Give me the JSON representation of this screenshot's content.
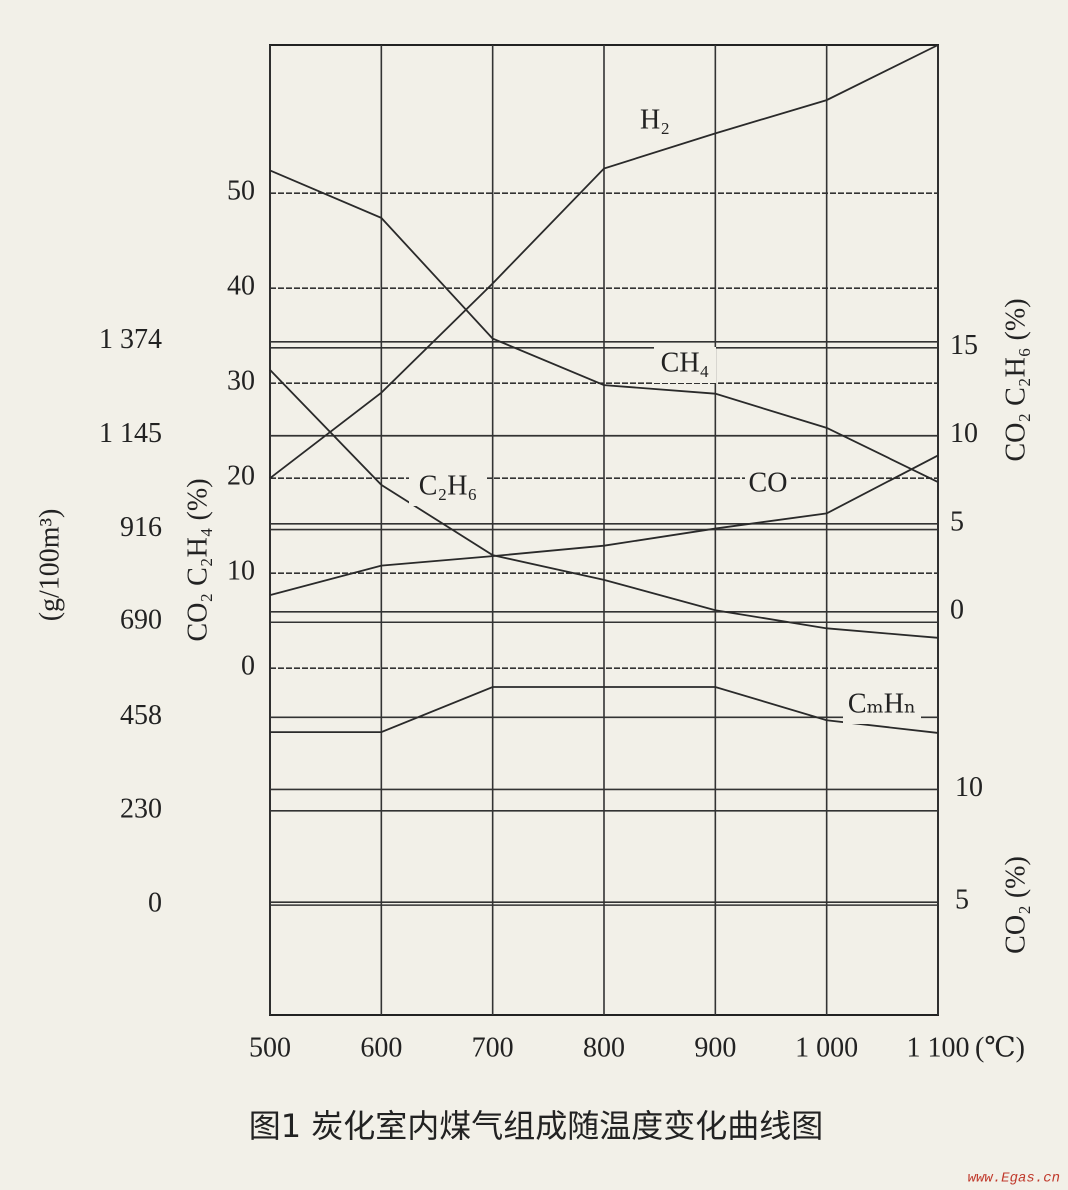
{
  "chart_data": {
    "type": "line",
    "title": "图1 炭化室内煤气组成随温度变化曲线图",
    "watermark": "www.Egas.cn",
    "x": [
      500,
      600,
      700,
      800,
      900,
      1000,
      1100
    ],
    "xlim": [
      500,
      1100
    ],
    "xticks": [
      500,
      600,
      700,
      800,
      900,
      {
        "value": 1000,
        "label": "1 000"
      },
      {
        "value": 1100,
        "label": "1 100"
      }
    ],
    "x_unit": "(℃)",
    "y_label": "CO₂ C₂H₄ (%)",
    "ylim": [
      -36.5,
      65.6
    ],
    "yticks": [
      0,
      10,
      20,
      30,
      40,
      50
    ],
    "y2_label": "(g/100m³)",
    "y2lim": [
      -268,
      2098
    ],
    "y2ticks": [
      0,
      230,
      458,
      690,
      916,
      {
        "value": 1145,
        "label": "1 145"
      },
      {
        "value": 1374,
        "label": "1 374"
      }
    ],
    "y3_label": "CO₂ C₂H₆ (%)",
    "y3lim": [
      -22.9,
      32.2
    ],
    "y3ticks": [
      0,
      5,
      10,
      15
    ],
    "y4_label": "CO₂ (%)",
    "y4lim": [
      0,
      43
    ],
    "y4ticks": [
      5,
      10
    ],
    "grid": true,
    "series": [
      {
        "name": "H₂",
        "color": "#2a2a2a",
        "values": [
          20,
          29,
          40.5,
          52.6,
          56.3,
          59.8,
          65.6
        ]
      },
      {
        "name": "CH₄",
        "color": "#2a2a2a",
        "values": [
          52.4,
          47.4,
          34.7,
          29.8,
          28.9,
          25.3,
          19.6
        ]
      },
      {
        "name": "C₂H₆",
        "color": "#2a2a2a",
        "values": [
          31.4,
          19.3,
          11.9,
          9.3,
          6.1,
          4.2,
          3.2
        ]
      },
      {
        "name": "CO",
        "color": "#2a2a2a",
        "values": [
          7.7,
          10.8,
          11.8,
          12.9,
          14.7,
          16.3,
          22.4
        ]
      },
      {
        "name": "CₘHₙ",
        "color": "#2a2a2a",
        "axis": "y2",
        "values": [
          422,
          422,
          532,
          532,
          532,
          451,
          420
        ]
      }
    ]
  }
}
